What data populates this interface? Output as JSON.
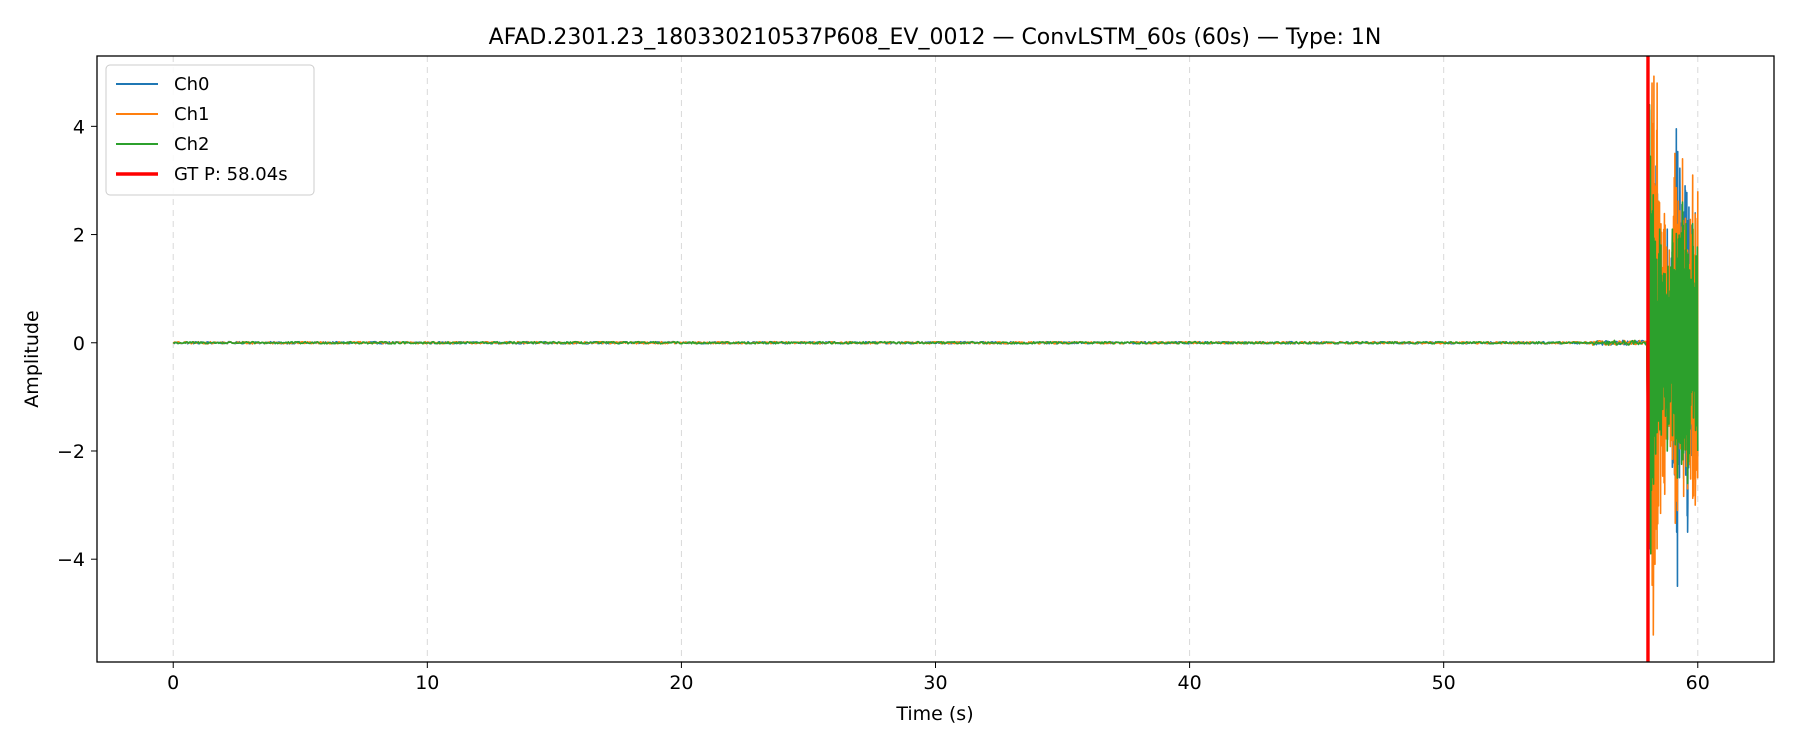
{
  "chart_data": {
    "type": "line",
    "title": "AFAD.2301.23_180330210537P608_EV_0012 — ConvLSTM_60s (60s) — Type: 1N",
    "xlabel": "Time (s)",
    "ylabel": "Amplitude",
    "xlim": [
      -3,
      63
    ],
    "ylim": [
      -5.9,
      5.3
    ],
    "xticks": [
      0,
      10,
      20,
      30,
      40,
      50,
      60
    ],
    "yticks": [
      -4,
      -2,
      0,
      2,
      4
    ],
    "grid": "x-dashed",
    "legend_position": "top-left",
    "duration_s": 60,
    "series": [
      {
        "name": "Ch0",
        "color": "#1f77b4",
        "noise_amplitude": 0.02,
        "peaks": [
          [
            58.1,
            4.3
          ],
          [
            58.3,
            -3.9
          ],
          [
            58.8,
            2.1
          ],
          [
            59.0,
            -2.3
          ],
          [
            59.1,
            2.7
          ],
          [
            59.2,
            -4.5
          ],
          [
            59.3,
            2.8
          ],
          [
            59.5,
            2.9
          ],
          [
            59.6,
            -3.5
          ],
          [
            59.9,
            2.4
          ],
          [
            60.0,
            -2.1
          ]
        ]
      },
      {
        "name": "Ch1",
        "color": "#ff7f0e",
        "noise_amplitude": 0.02,
        "peaks": [
          [
            56.3,
            0.05
          ],
          [
            58.2,
            4.8
          ],
          [
            58.25,
            -5.4
          ],
          [
            58.4,
            4.8
          ],
          [
            58.7,
            -2.8
          ],
          [
            59.1,
            3.5
          ],
          [
            59.2,
            -3.1
          ],
          [
            59.4,
            3.4
          ],
          [
            59.6,
            -2.7
          ],
          [
            59.8,
            3.1
          ],
          [
            59.9,
            -3.0
          ],
          [
            60.0,
            2.8
          ]
        ]
      },
      {
        "name": "Ch2",
        "color": "#2ca02c",
        "noise_amplitude": 0.02,
        "peaks": [
          [
            58.1,
            4.4
          ],
          [
            58.15,
            -3.9
          ],
          [
            58.5,
            2.1
          ],
          [
            58.8,
            -2.0
          ],
          [
            59.0,
            2.1
          ],
          [
            59.2,
            -2.5
          ],
          [
            59.4,
            2.6
          ],
          [
            59.6,
            -2.6
          ],
          [
            59.8,
            2.2
          ],
          [
            60.0,
            -2.0
          ]
        ]
      }
    ],
    "markers": [
      {
        "name": "GT P: 58.04s",
        "x": 58.04,
        "color": "#ff0000"
      }
    ]
  }
}
